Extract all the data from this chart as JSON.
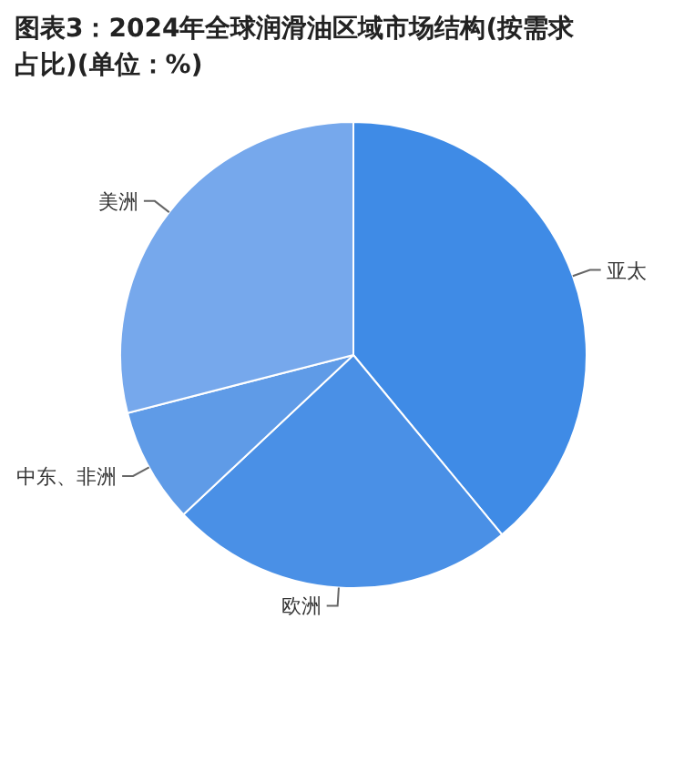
{
  "chart_data": {
    "type": "pie",
    "title": "图表3：2024年全球润滑油区域市场结构(按需求占比)(单位：%)",
    "categories": [
      "亚太",
      "欧洲",
      "中东、非洲",
      "美洲"
    ],
    "values": [
      39,
      24,
      8,
      29
    ],
    "colors": [
      "#3f8be6",
      "#4a90e6",
      "#5f9be7",
      "#76a8ec"
    ],
    "legend": false
  }
}
